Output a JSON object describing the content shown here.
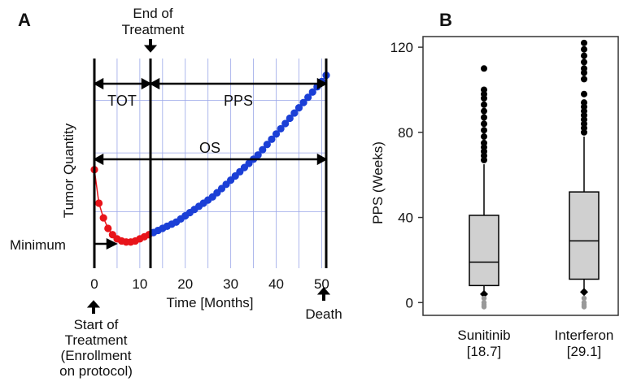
{
  "chart_data": [
    {
      "panel": "A",
      "type": "line",
      "title": "",
      "xlabel": "Time [Months]",
      "ylabel": "Tumor Quantity",
      "xlim": [
        0,
        51
      ],
      "ylim": [
        0,
        100
      ],
      "x_ticks": [
        "0",
        "10",
        "20",
        "30",
        "40",
        "50"
      ],
      "grid": true,
      "series": [
        {
          "color": "#e8141a",
          "x": [
            0,
            1,
            2,
            3,
            4,
            5,
            6,
            7,
            8,
            9,
            10,
            11,
            12
          ],
          "y": [
            47,
            31,
            24,
            19,
            16,
            14,
            13,
            12.5,
            12.5,
            13,
            14,
            15,
            16
          ]
        },
        {
          "color": "#1b3fd6",
          "x": [
            13,
            14,
            15,
            16,
            17,
            18,
            19,
            20,
            21,
            22,
            23,
            24,
            25,
            26,
            27,
            28,
            29,
            30,
            31,
            32,
            33,
            34,
            35,
            36,
            37,
            38,
            39,
            40,
            41,
            42,
            43,
            44,
            45,
            46,
            47,
            48,
            49,
            50,
            51
          ],
          "y": [
            17,
            18,
            19,
            20,
            21,
            22,
            23.5,
            25,
            26.5,
            28,
            29.5,
            31,
            32.5,
            34,
            36,
            38,
            40,
            42,
            44,
            46,
            48,
            50,
            52,
            54,
            56.5,
            59,
            61.5,
            64,
            66.5,
            69,
            71.5,
            74,
            76.5,
            79,
            81.5,
            84,
            86.5,
            89,
            92
          ]
        }
      ],
      "annotations": {
        "end_of_treatment": "End of\nTreatment",
        "tot": "TOT",
        "pps": "PPS",
        "os": "OS",
        "minimum": "Minimum",
        "start_of_treatment": "Start of\nTreatment\n(Enrollment\non protocol)",
        "death": "Death"
      }
    },
    {
      "panel": "B",
      "type": "box",
      "title": "",
      "xlabel": "",
      "ylabel": "PPS (Weeks)",
      "ylim": [
        -6,
        125
      ],
      "y_ticks": [
        0,
        40,
        80,
        120
      ],
      "categories": [
        "Sunitinib\n[18.7]",
        "Interferon\n[29.1]"
      ],
      "boxes": [
        {
          "q1": 8,
          "median": 19,
          "q3": 41,
          "whisker_low": 4,
          "whisker_high": 65,
          "outliers_high": [
            67,
            69,
            71,
            73,
            75,
            78,
            81,
            84,
            87,
            90,
            93,
            96,
            98,
            100,
            110
          ],
          "outliers_low": [
            2,
            0,
            -1,
            -2
          ]
        },
        {
          "q1": 11,
          "median": 29,
          "q3": 52,
          "whisker_low": 5,
          "whisker_high": 78,
          "outliers_high": [
            80,
            82,
            84,
            86,
            88,
            90,
            92,
            94,
            98,
            105,
            108,
            110,
            113,
            116,
            119,
            122
          ],
          "outliers_low": [
            2,
            0,
            -1,
            -2
          ]
        }
      ]
    }
  ]
}
